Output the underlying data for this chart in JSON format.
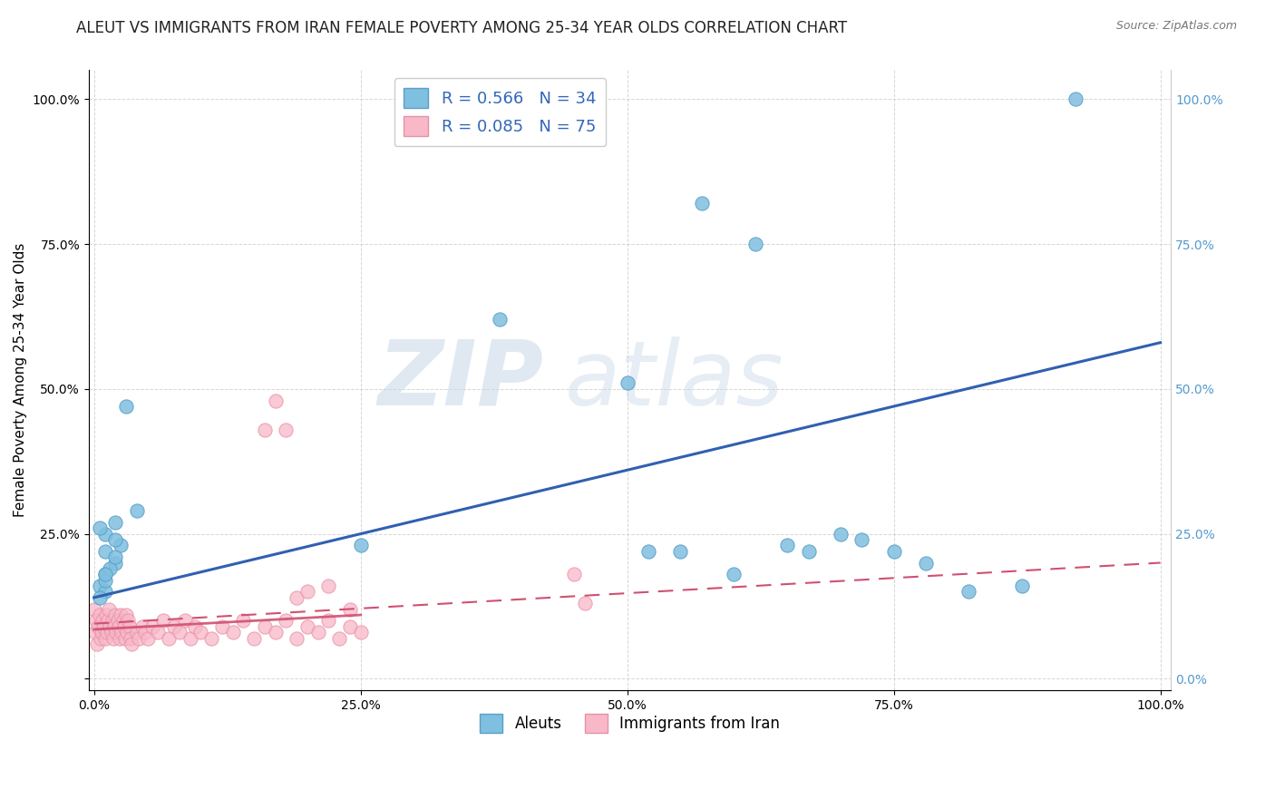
{
  "title": "ALEUT VS IMMIGRANTS FROM IRAN FEMALE POVERTY AMONG 25-34 YEAR OLDS CORRELATION CHART",
  "source": "Source: ZipAtlas.com",
  "ylabel": "Female Poverty Among 25-34 Year Olds",
  "xlabel": "",
  "watermark_zip": "ZIP",
  "watermark_atlas": "atlas",
  "xlim": [
    0.0,
    1.0
  ],
  "ylim": [
    0.0,
    1.0
  ],
  "xtick_labels": [
    "0.0%",
    "25.0%",
    "50.0%",
    "75.0%",
    "100.0%"
  ],
  "xtick_vals": [
    0.0,
    0.25,
    0.5,
    0.75,
    1.0
  ],
  "ytick_labels": [
    "",
    "25.0%",
    "50.0%",
    "75.0%",
    "100.0%"
  ],
  "ytick_vals": [
    0.0,
    0.25,
    0.5,
    0.75,
    1.0
  ],
  "right_ytick_labels": [
    "0.0%",
    "25.0%",
    "50.0%",
    "75.0%",
    "100.0%"
  ],
  "aleuts_color": "#7fbfdf",
  "aleuts_edge": "#5aa0c8",
  "iran_color": "#f8b8c8",
  "iran_edge": "#e890a8",
  "aleuts_R": 0.566,
  "aleuts_N": 34,
  "iran_R": 0.085,
  "iran_N": 75,
  "aleut_trend_color": "#3060b0",
  "iran_trend_color": "#d05070",
  "aleuts_x": [
    0.01,
    0.02,
    0.01,
    0.005,
    0.01,
    0.005,
    0.01,
    0.015,
    0.02,
    0.025,
    0.01,
    0.02,
    0.005,
    0.01,
    0.03,
    0.02,
    0.04,
    0.25,
    0.38,
    0.5,
    0.55,
    0.6,
    0.65,
    0.7,
    0.75,
    0.78,
    0.82,
    0.87,
    0.92,
    0.52,
    0.57,
    0.62,
    0.67,
    0.72
  ],
  "aleuts_y": [
    0.18,
    0.2,
    0.22,
    0.16,
    0.15,
    0.14,
    0.17,
    0.19,
    0.21,
    0.23,
    0.25,
    0.24,
    0.26,
    0.18,
    0.47,
    0.27,
    0.29,
    0.23,
    0.62,
    0.51,
    0.22,
    0.18,
    0.23,
    0.25,
    0.22,
    0.2,
    0.15,
    0.16,
    1.0,
    0.22,
    0.82,
    0.75,
    0.22,
    0.24
  ],
  "iran_x": [
    0.0,
    0.001,
    0.002,
    0.003,
    0.004,
    0.005,
    0.006,
    0.007,
    0.008,
    0.009,
    0.01,
    0.011,
    0.012,
    0.013,
    0.014,
    0.015,
    0.016,
    0.017,
    0.018,
    0.019,
    0.02,
    0.021,
    0.022,
    0.023,
    0.024,
    0.025,
    0.026,
    0.027,
    0.028,
    0.029,
    0.03,
    0.031,
    0.032,
    0.033,
    0.034,
    0.035,
    0.04,
    0.042,
    0.045,
    0.048,
    0.05,
    0.055,
    0.06,
    0.065,
    0.07,
    0.075,
    0.08,
    0.085,
    0.09,
    0.095,
    0.1,
    0.11,
    0.12,
    0.13,
    0.14,
    0.15,
    0.16,
    0.17,
    0.18,
    0.19,
    0.2,
    0.21,
    0.22,
    0.23,
    0.24,
    0.25,
    0.16,
    0.17,
    0.18,
    0.19,
    0.2,
    0.22,
    0.24,
    0.45,
    0.46
  ],
  "iran_y": [
    0.12,
    0.08,
    0.1,
    0.06,
    0.09,
    0.11,
    0.07,
    0.08,
    0.1,
    0.09,
    0.07,
    0.11,
    0.08,
    0.1,
    0.12,
    0.09,
    0.08,
    0.1,
    0.07,
    0.09,
    0.11,
    0.08,
    0.1,
    0.09,
    0.07,
    0.11,
    0.08,
    0.1,
    0.09,
    0.07,
    0.11,
    0.08,
    0.1,
    0.09,
    0.07,
    0.06,
    0.08,
    0.07,
    0.09,
    0.08,
    0.07,
    0.09,
    0.08,
    0.1,
    0.07,
    0.09,
    0.08,
    0.1,
    0.07,
    0.09,
    0.08,
    0.07,
    0.09,
    0.08,
    0.1,
    0.07,
    0.09,
    0.08,
    0.1,
    0.07,
    0.09,
    0.08,
    0.1,
    0.07,
    0.09,
    0.08,
    0.43,
    0.48,
    0.43,
    0.14,
    0.15,
    0.16,
    0.12,
    0.18,
    0.13
  ],
  "aleut_line_x0": 0.0,
  "aleut_line_y0": 0.14,
  "aleut_line_x1": 1.0,
  "aleut_line_y1": 0.58,
  "iran_line_x0": 0.0,
  "iran_line_y0": 0.095,
  "iran_line_x1": 1.0,
  "iran_line_y1": 0.2,
  "background_color": "#ffffff",
  "grid_color": "#cccccc",
  "title_fontsize": 12,
  "axis_label_fontsize": 11,
  "tick_fontsize": 10,
  "legend_fontsize": 12
}
